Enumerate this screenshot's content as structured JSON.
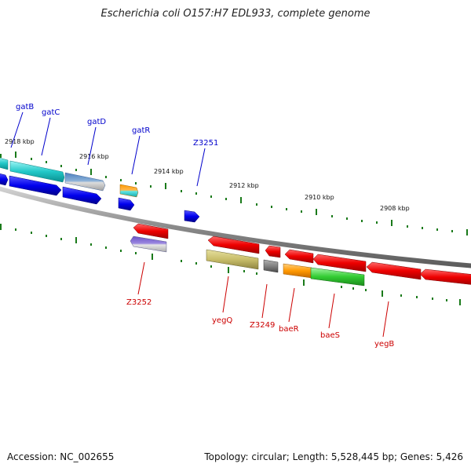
{
  "title": "Escherichia coli O157:H7 EDL933, complete genome",
  "footer": {
    "accession": "Accession: NC_002655",
    "summary": "Topology: circular; Length: 5,528,445 bp; Genes: 5,426"
  },
  "colors": {
    "forward_label": "#0000cc",
    "reverse_label": "#cc0000",
    "tick": "#1a7a1a",
    "backbone": "#888888"
  },
  "scale_labels": [
    "2918 kbp",
    "2916 kbp",
    "2914 kbp",
    "2912 kbp",
    "2910 kbp",
    "2908 kbp"
  ],
  "forward_genes": [
    "gatB",
    "gatC",
    "gatD",
    "gatR",
    "Z3251"
  ],
  "reverse_genes": [
    "Z3252",
    "yegQ",
    "Z3249",
    "baeR",
    "baeS",
    "yegB"
  ]
}
